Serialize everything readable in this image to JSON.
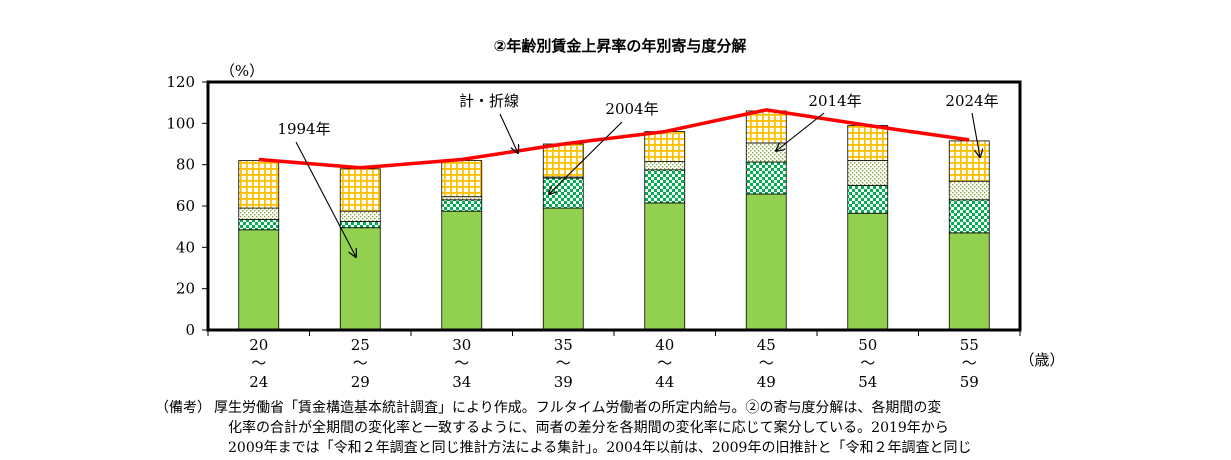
{
  "chart_data": {
    "type": "bar",
    "title": "②年齢別賃金上昇率の年別寄与度分解",
    "ylabel": "（%）",
    "xlabel": "（歳）",
    "ylim": [
      0,
      120
    ],
    "yticks": [
      0,
      20,
      40,
      60,
      80,
      100,
      120
    ],
    "categories": [
      {
        "from": "20",
        "sep": "〜",
        "to": "24"
      },
      {
        "from": "25",
        "sep": "〜",
        "to": "29"
      },
      {
        "from": "30",
        "sep": "〜",
        "to": "34"
      },
      {
        "from": "35",
        "sep": "〜",
        "to": "39"
      },
      {
        "from": "40",
        "sep": "〜",
        "to": "44"
      },
      {
        "from": "45",
        "sep": "〜",
        "to": "49"
      },
      {
        "from": "50",
        "sep": "〜",
        "to": "54"
      },
      {
        "from": "55",
        "sep": "〜",
        "to": "59"
      }
    ],
    "series": [
      {
        "values": [
          48.5,
          49.5,
          57.5,
          59.0,
          61.5,
          65.8,
          56.5,
          47.0
        ],
        "color": "#92d050",
        "pattern": "solid"
      },
      {
        "values": [
          5.0,
          3.0,
          5.5,
          14.5,
          16.0,
          15.5,
          13.5,
          16.0
        ],
        "color": "#00b050",
        "pattern": "checkered"
      },
      {
        "values": [
          5.5,
          5.0,
          1.5,
          0.5,
          4.0,
          9.2,
          12.0,
          9.0
        ],
        "color": "#c9d97a",
        "pattern": "dotted"
      },
      {
        "values": [
          23.0,
          20.5,
          17.5,
          16.0,
          14.5,
          15.5,
          17.0,
          19.5
        ],
        "color": "#ffc000",
        "pattern": "grid"
      }
    ],
    "total_line": {
      "values": [
        82.5,
        78.5,
        82.5,
        90.0,
        96.0,
        106.5,
        99.0,
        92.0
      ],
      "color": "#ff0000"
    },
    "annotations": [
      {
        "text": "計・折線"
      },
      {
        "text": "1994年"
      },
      {
        "text": "2004年"
      },
      {
        "text": "2014年"
      },
      {
        "text": "2024年"
      }
    ]
  },
  "note": {
    "head": "（備考）",
    "lines": [
      "厚生労働省「賃金構造基本統計調査」により作成。フルタイム労働者の所定内給与。②の寄与度分解は、各期間の変",
      "化率の合計が全期間の変化率と一致するように、両者の差分を各期間の変化率に応じて案分している。2019年から",
      "2009年までは「令和２年調査と同じ推計方法による集計」。2004年以前は、2009年の旧推計と「令和２年調査と同じ"
    ]
  }
}
